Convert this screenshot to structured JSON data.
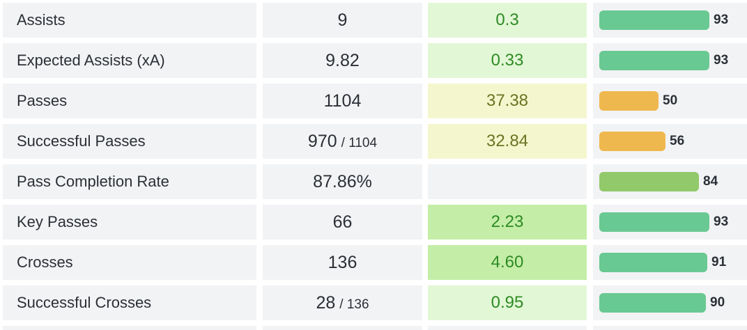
{
  "colors": {
    "cell_bg": "#f2f3f5",
    "per90_light_green_bg": "#e2f7d6",
    "per90_green_bg": "#c4eea7",
    "per90_yellow_bg": "#f4f7cd",
    "per90_green_text": "#2e8b24",
    "per90_olive_text": "#6b7322",
    "bar_green": "#69c992",
    "bar_yellow_green": "#92c96a",
    "bar_orange": "#efb84e"
  },
  "rows": [
    {
      "label": "Assists",
      "total": "9",
      "total_of": "",
      "per90": "0.3",
      "per90_bg": "#e2f7d6",
      "per90_color": "#2e8b24",
      "percentile": 93,
      "bar_color": "#69c992"
    },
    {
      "label": "Expected Assists (xA)",
      "total": "9.82",
      "total_of": "",
      "per90": "0.33",
      "per90_bg": "#e2f7d6",
      "per90_color": "#2e8b24",
      "percentile": 93,
      "bar_color": "#69c992"
    },
    {
      "label": "Passes",
      "total": "1104",
      "total_of": "",
      "per90": "37.38",
      "per90_bg": "#f4f7cd",
      "per90_color": "#6b7322",
      "percentile": 50,
      "bar_color": "#efb84e"
    },
    {
      "label": "Successful Passes",
      "total": "970",
      "total_of": "/ 1104",
      "per90": "32.84",
      "per90_bg": "#f4f7cd",
      "per90_color": "#6b7322",
      "percentile": 56,
      "bar_color": "#efb84e"
    },
    {
      "label": "Pass Completion Rate",
      "total": "87.86%",
      "total_of": "",
      "per90": "",
      "per90_bg": "#f2f3f5",
      "per90_color": "#2b2f36",
      "percentile": 84,
      "bar_color": "#92c96a"
    },
    {
      "label": "Key Passes",
      "total": "66",
      "total_of": "",
      "per90": "2.23",
      "per90_bg": "#c4eea7",
      "per90_color": "#2e8b24",
      "percentile": 93,
      "bar_color": "#69c992"
    },
    {
      "label": "Crosses",
      "total": "136",
      "total_of": "",
      "per90": "4.60",
      "per90_bg": "#c4eea7",
      "per90_color": "#2e8b24",
      "percentile": 91,
      "bar_color": "#69c992"
    },
    {
      "label": "Successful Crosses",
      "total": "28",
      "total_of": "/ 136",
      "per90": "0.95",
      "per90_bg": "#e2f7d6",
      "per90_color": "#2e8b24",
      "percentile": 90,
      "bar_color": "#69c992"
    }
  ]
}
